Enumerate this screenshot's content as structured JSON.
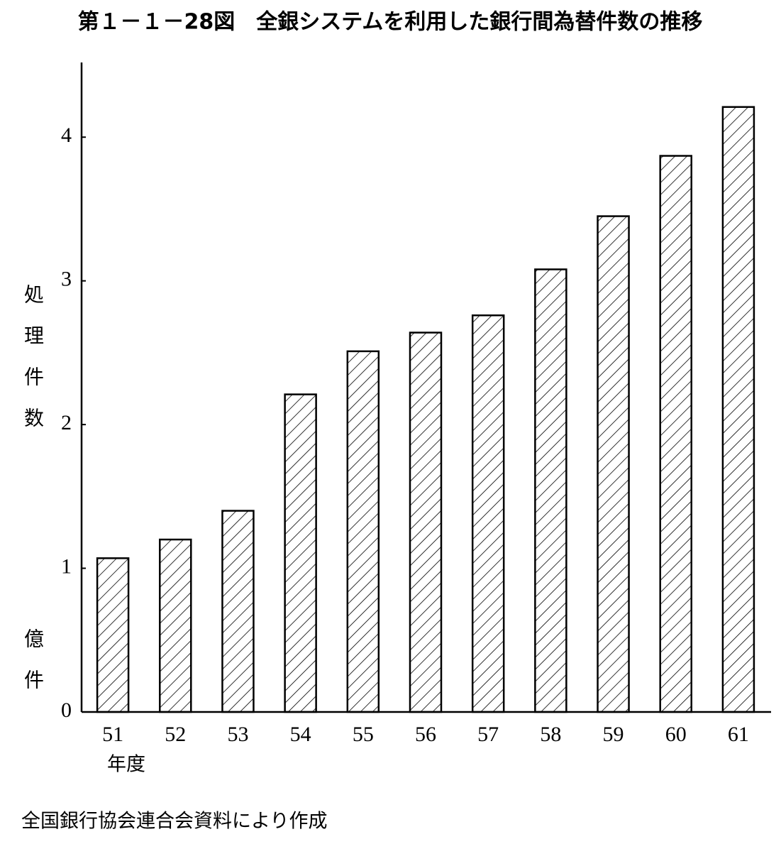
{
  "chart_data": {
    "type": "bar",
    "title": "第１－１－28図　全銀システムを利用した銀行間為替件数の推移",
    "y_label": "処理件数",
    "unit": "億件",
    "x_label": "年度",
    "source": "全国銀行協会連合会資料により作成",
    "categories": [
      "51",
      "52",
      "53",
      "54",
      "55",
      "56",
      "57",
      "58",
      "59",
      "60",
      "61"
    ],
    "values": [
      1.07,
      1.2,
      1.4,
      2.21,
      2.51,
      2.64,
      2.76,
      3.08,
      3.45,
      3.87,
      4.21
    ],
    "color": "#000000",
    "ylim": [
      0,
      4.5
    ],
    "yticks": [
      0,
      1,
      2,
      3,
      4
    ],
    "grid": false
  }
}
